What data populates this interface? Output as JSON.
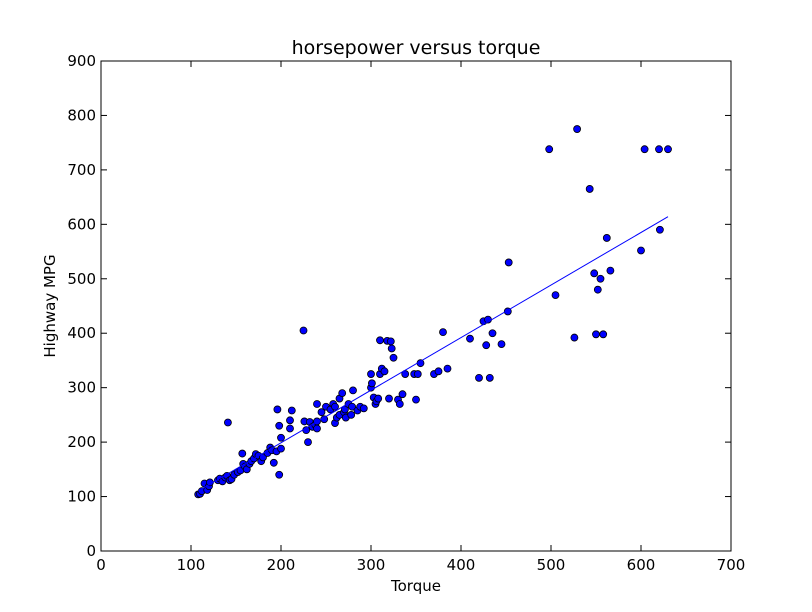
{
  "chart_data": {
    "type": "scatter",
    "title": "horsepower versus torque",
    "xlabel": "Torque",
    "ylabel": "Highway MPG",
    "xlim": [
      0,
      700
    ],
    "ylim": [
      0,
      900
    ],
    "xticks": [
      0,
      100,
      200,
      300,
      400,
      500,
      600,
      700
    ],
    "yticks": [
      0,
      100,
      200,
      300,
      400,
      500,
      600,
      700,
      800,
      900
    ],
    "grid": false,
    "colors": {
      "marker_fill": "#0000ff",
      "marker_edge": "#000000",
      "line": "#0000ff"
    },
    "series": [
      {
        "name": "data",
        "kind": "scatter",
        "points": [
          [
            108,
            104
          ],
          [
            110,
            105
          ],
          [
            112,
            110
          ],
          [
            115,
            124
          ],
          [
            118,
            112
          ],
          [
            120,
            119
          ],
          [
            121,
            126
          ],
          [
            130,
            130
          ],
          [
            132,
            133
          ],
          [
            135,
            128
          ],
          [
            138,
            135
          ],
          [
            140,
            138
          ],
          [
            141,
            236
          ],
          [
            143,
            130
          ],
          [
            145,
            132
          ],
          [
            148,
            140
          ],
          [
            152,
            145
          ],
          [
            155,
            148
          ],
          [
            157,
            179
          ],
          [
            158,
            160
          ],
          [
            160,
            155
          ],
          [
            162,
            150
          ],
          [
            165,
            160
          ],
          [
            167,
            165
          ],
          [
            170,
            170
          ],
          [
            172,
            178
          ],
          [
            175,
            175
          ],
          [
            178,
            165
          ],
          [
            180,
            172
          ],
          [
            185,
            180
          ],
          [
            188,
            190
          ],
          [
            190,
            185
          ],
          [
            192,
            162
          ],
          [
            195,
            183
          ],
          [
            196,
            260
          ],
          [
            198,
            230
          ],
          [
            198,
            140
          ],
          [
            200,
            188
          ],
          [
            200,
            208
          ],
          [
            210,
            240
          ],
          [
            210,
            225
          ],
          [
            212,
            258
          ],
          [
            225,
            405
          ],
          [
            226,
            238
          ],
          [
            228,
            222
          ],
          [
            230,
            200
          ],
          [
            232,
            237
          ],
          [
            235,
            228
          ],
          [
            238,
            232
          ],
          [
            240,
            225
          ],
          [
            240,
            238
          ],
          [
            240,
            270
          ],
          [
            245,
            255
          ],
          [
            248,
            242
          ],
          [
            250,
            265
          ],
          [
            255,
            260
          ],
          [
            258,
            270
          ],
          [
            260,
            265
          ],
          [
            260,
            235
          ],
          [
            262,
            245
          ],
          [
            265,
            250
          ],
          [
            265,
            280
          ],
          [
            268,
            290
          ],
          [
            270,
            255
          ],
          [
            271,
            260
          ],
          [
            272,
            245
          ],
          [
            275,
            270
          ],
          [
            278,
            250
          ],
          [
            279,
            265
          ],
          [
            280,
            295
          ],
          [
            285,
            258
          ],
          [
            288,
            265
          ],
          [
            292,
            262
          ],
          [
            300,
            325
          ],
          [
            300,
            300
          ],
          [
            301,
            308
          ],
          [
            303,
            282
          ],
          [
            305,
            270
          ],
          [
            306,
            275
          ],
          [
            308,
            280
          ],
          [
            310,
            387
          ],
          [
            310,
            325
          ],
          [
            312,
            335
          ],
          [
            315,
            330
          ],
          [
            318,
            386
          ],
          [
            320,
            280
          ],
          [
            322,
            385
          ],
          [
            323,
            372
          ],
          [
            325,
            355
          ],
          [
            330,
            278
          ],
          [
            332,
            270
          ],
          [
            335,
            288
          ],
          [
            338,
            325
          ],
          [
            348,
            325
          ],
          [
            350,
            278
          ],
          [
            352,
            325
          ],
          [
            355,
            345
          ],
          [
            370,
            325
          ],
          [
            375,
            330
          ],
          [
            380,
            402
          ],
          [
            385,
            335
          ],
          [
            410,
            390
          ],
          [
            420,
            318
          ],
          [
            425,
            422
          ],
          [
            428,
            378
          ],
          [
            430,
            425
          ],
          [
            432,
            318
          ],
          [
            435,
            400
          ],
          [
            445,
            380
          ],
          [
            452,
            440
          ],
          [
            453,
            530
          ],
          [
            498,
            738
          ],
          [
            505,
            470
          ],
          [
            526,
            392
          ],
          [
            529,
            775
          ],
          [
            543,
            665
          ],
          [
            548,
            510
          ],
          [
            550,
            398
          ],
          [
            552,
            480
          ],
          [
            555,
            500
          ],
          [
            558,
            398
          ],
          [
            562,
            575
          ],
          [
            566,
            515
          ],
          [
            600,
            552
          ],
          [
            604,
            738
          ],
          [
            620,
            738
          ],
          [
            621,
            590
          ],
          [
            630,
            738
          ]
        ]
      },
      {
        "name": "fit",
        "kind": "line",
        "points": [
          [
            108,
            110
          ],
          [
            630,
            614
          ]
        ]
      }
    ]
  }
}
